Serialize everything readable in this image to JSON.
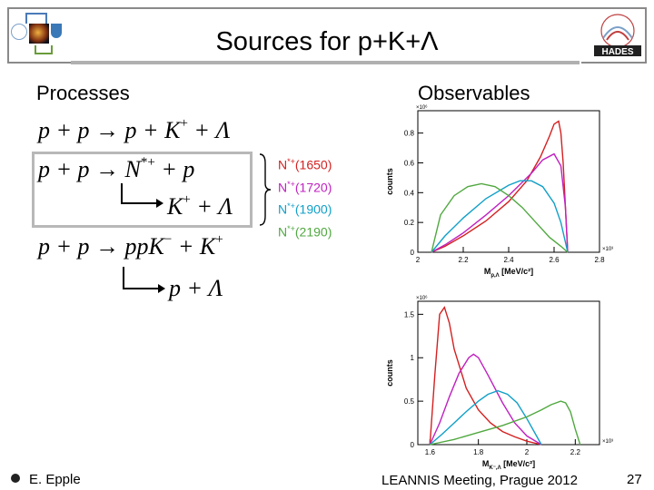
{
  "slide": {
    "title": "Sources for p+K+Λ",
    "processes_heading": "Processes",
    "observables_heading": "Observables",
    "footer_left": "E. Epple",
    "footer_center": "LEANNIS Meeting, Prague 2012",
    "page_number": "27"
  },
  "equations": {
    "eq1": {
      "lhs": "p + p",
      "rhs": "p + K",
      "sup": "+",
      "tail": " + Λ"
    },
    "eq2": {
      "lhs": "p + p",
      "rhs": "N",
      "sup": "*+",
      "tail": " + p"
    },
    "eq2_decay": {
      "text": "K",
      "sup": "+",
      "tail": " + Λ"
    },
    "eq3": {
      "lhs": "p + p",
      "rhs": "ppK",
      "sup": "−",
      "tail": " + K",
      "sup2": "+"
    },
    "eq3_decay": {
      "text": "p + Λ"
    }
  },
  "resonances": [
    {
      "base": "N",
      "sup": "*+",
      "mass": "(1650)",
      "color": "#d42020"
    },
    {
      "base": "N",
      "sup": "*+",
      "mass": "(1720)",
      "color": "#c020c0"
    },
    {
      "base": "N",
      "sup": "*+",
      "mass": "(1900)",
      "color": "#10a0c8"
    },
    {
      "base": "N",
      "sup": "*+",
      "mass": "(2190)",
      "color": "#50a840"
    }
  ],
  "chart_data": [
    {
      "type": "line",
      "xlabel": "M",
      "xlabel_sub": "p,Λ",
      "xlabel_unit": " [MeV/c²]",
      "ylabel": "counts",
      "y_multiplier": "×10⁶",
      "x_multiplier": "×10³",
      "xlim": [
        2.0,
        2.8
      ],
      "ylim": [
        0,
        0.95
      ],
      "xticks": [
        "2",
        "2.2",
        "2.4",
        "2.6",
        "2.8"
      ],
      "yticks": [
        "0",
        "0.2",
        "0.4",
        "0.6",
        "0.8"
      ],
      "series": [
        {
          "color": "#d42020",
          "x": [
            2.06,
            2.12,
            2.2,
            2.3,
            2.4,
            2.48,
            2.54,
            2.58,
            2.6,
            2.62,
            2.63,
            2.64,
            2.65,
            2.66
          ],
          "y": [
            0,
            0.04,
            0.11,
            0.21,
            0.34,
            0.48,
            0.64,
            0.78,
            0.86,
            0.88,
            0.8,
            0.6,
            0.3,
            0
          ]
        },
        {
          "color": "#c020c0",
          "x": [
            2.06,
            2.12,
            2.2,
            2.3,
            2.4,
            2.5,
            2.55,
            2.6,
            2.63,
            2.65,
            2.66
          ],
          "y": [
            0,
            0.05,
            0.13,
            0.25,
            0.38,
            0.53,
            0.62,
            0.66,
            0.58,
            0.3,
            0
          ]
        },
        {
          "color": "#10a0c8",
          "x": [
            2.06,
            2.12,
            2.2,
            2.3,
            2.4,
            2.45,
            2.5,
            2.55,
            2.6,
            2.63,
            2.66
          ],
          "y": [
            0,
            0.11,
            0.23,
            0.36,
            0.45,
            0.48,
            0.48,
            0.44,
            0.33,
            0.2,
            0
          ]
        },
        {
          "color": "#50a840",
          "x": [
            2.06,
            2.1,
            2.16,
            2.22,
            2.28,
            2.34,
            2.4,
            2.46,
            2.52,
            2.58,
            2.63,
            2.66
          ],
          "y": [
            0,
            0.25,
            0.38,
            0.44,
            0.46,
            0.44,
            0.38,
            0.3,
            0.2,
            0.1,
            0.04,
            0
          ]
        }
      ]
    },
    {
      "type": "line",
      "xlabel": "M",
      "xlabel_sub": "K⁻,Λ",
      "xlabel_unit": " [MeV/c²]",
      "ylabel": "counts",
      "y_multiplier": "×10⁶",
      "x_multiplier": "×10³",
      "xlim": [
        1.55,
        2.3
      ],
      "ylim": [
        0,
        1.65
      ],
      "xticks": [
        "1.6",
        "1.8",
        "2",
        "2.2"
      ],
      "yticks": [
        "0",
        "0.5",
        "1",
        "1.5"
      ],
      "series": [
        {
          "color": "#d42020",
          "x": [
            1.6,
            1.62,
            1.64,
            1.66,
            1.68,
            1.7,
            1.75,
            1.8,
            1.85,
            1.9,
            1.95,
            2.0,
            2.06
          ],
          "y": [
            0,
            0.8,
            1.5,
            1.58,
            1.4,
            1.1,
            0.65,
            0.4,
            0.25,
            0.15,
            0.09,
            0.04,
            0
          ]
        },
        {
          "color": "#c020c0",
          "x": [
            1.6,
            1.64,
            1.68,
            1.72,
            1.76,
            1.78,
            1.8,
            1.84,
            1.9,
            1.95,
            2.0,
            2.06
          ],
          "y": [
            0,
            0.25,
            0.55,
            0.82,
            1.0,
            1.04,
            1.0,
            0.8,
            0.48,
            0.25,
            0.1,
            0
          ]
        },
        {
          "color": "#10a0c8",
          "x": [
            1.6,
            1.65,
            1.7,
            1.75,
            1.8,
            1.84,
            1.88,
            1.92,
            1.96,
            2.0,
            2.03,
            2.06
          ],
          "y": [
            0,
            0.12,
            0.25,
            0.38,
            0.5,
            0.58,
            0.62,
            0.58,
            0.48,
            0.3,
            0.15,
            0
          ]
        },
        {
          "color": "#50a840",
          "x": [
            1.6,
            1.7,
            1.8,
            1.9,
            2.0,
            2.06,
            2.1,
            2.14,
            2.16,
            2.18,
            2.2,
            2.22
          ],
          "y": [
            0,
            0.06,
            0.14,
            0.22,
            0.32,
            0.4,
            0.46,
            0.5,
            0.48,
            0.38,
            0.18,
            0
          ]
        }
      ]
    }
  ]
}
